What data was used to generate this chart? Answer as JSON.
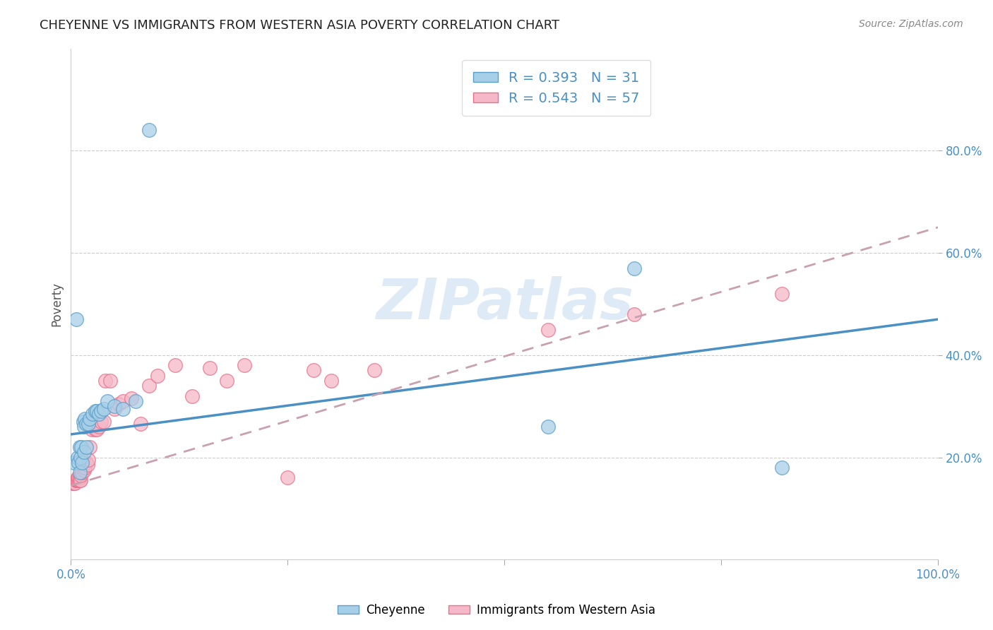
{
  "title": "CHEYENNE VS IMMIGRANTS FROM WESTERN ASIA POVERTY CORRELATION CHART",
  "source": "Source: ZipAtlas.com",
  "ylabel": "Poverty",
  "xlim": [
    0,
    1.0
  ],
  "ylim": [
    0,
    1.0
  ],
  "xtick_positions": [
    0.0,
    0.25,
    0.5,
    0.75,
    1.0
  ],
  "xtick_labels": [
    "0.0%",
    "",
    "",
    "",
    "100.0%"
  ],
  "ytick_positions": [
    0.2,
    0.4,
    0.6,
    0.8
  ],
  "ytick_labels": [
    "20.0%",
    "40.0%",
    "60.0%",
    "80.0%"
  ],
  "blue_color": "#a8cfe8",
  "pink_color": "#f5b8c8",
  "blue_edge_color": "#5b9ec9",
  "pink_edge_color": "#e8708a",
  "blue_line_color": "#4a90c4",
  "pink_line_color": "#c8a0b0",
  "R_blue": 0.393,
  "N_blue": 31,
  "R_pink": 0.543,
  "N_pink": 57,
  "legend_label_blue": "Cheyenne",
  "legend_label_pink": "Immigrants from Western Asia",
  "watermark": "ZIPatlas",
  "blue_scatter_x": [
    0.004,
    0.006,
    0.008,
    0.009,
    0.01,
    0.01,
    0.011,
    0.012,
    0.013,
    0.014,
    0.015,
    0.015,
    0.016,
    0.018,
    0.018,
    0.02,
    0.022,
    0.025,
    0.028,
    0.03,
    0.032,
    0.035,
    0.038,
    0.042,
    0.05,
    0.06,
    0.075,
    0.09,
    0.55,
    0.65,
    0.82
  ],
  "blue_scatter_y": [
    0.19,
    0.47,
    0.2,
    0.19,
    0.17,
    0.22,
    0.2,
    0.22,
    0.19,
    0.27,
    0.26,
    0.21,
    0.275,
    0.265,
    0.22,
    0.265,
    0.275,
    0.285,
    0.29,
    0.29,
    0.285,
    0.29,
    0.295,
    0.31,
    0.3,
    0.295,
    0.31,
    0.84,
    0.26,
    0.57,
    0.18
  ],
  "pink_scatter_x": [
    0.002,
    0.003,
    0.004,
    0.005,
    0.006,
    0.006,
    0.007,
    0.008,
    0.008,
    0.009,
    0.009,
    0.01,
    0.01,
    0.011,
    0.011,
    0.012,
    0.012,
    0.013,
    0.013,
    0.014,
    0.015,
    0.015,
    0.016,
    0.017,
    0.018,
    0.019,
    0.02,
    0.022,
    0.024,
    0.025,
    0.026,
    0.028,
    0.03,
    0.032,
    0.035,
    0.038,
    0.04,
    0.045,
    0.05,
    0.055,
    0.06,
    0.07,
    0.08,
    0.09,
    0.1,
    0.12,
    0.14,
    0.16,
    0.18,
    0.2,
    0.25,
    0.28,
    0.3,
    0.35,
    0.55,
    0.65,
    0.82
  ],
  "pink_scatter_y": [
    0.15,
    0.15,
    0.15,
    0.15,
    0.155,
    0.155,
    0.155,
    0.155,
    0.16,
    0.155,
    0.16,
    0.155,
    0.16,
    0.155,
    0.165,
    0.17,
    0.18,
    0.17,
    0.185,
    0.18,
    0.175,
    0.19,
    0.18,
    0.19,
    0.19,
    0.185,
    0.195,
    0.22,
    0.255,
    0.26,
    0.27,
    0.255,
    0.255,
    0.26,
    0.27,
    0.27,
    0.35,
    0.35,
    0.295,
    0.305,
    0.31,
    0.315,
    0.265,
    0.34,
    0.36,
    0.38,
    0.32,
    0.375,
    0.35,
    0.38,
    0.16,
    0.37,
    0.35,
    0.37,
    0.45,
    0.48,
    0.52
  ],
  "blue_line_y0": 0.245,
  "blue_line_y1": 0.47,
  "pink_line_y0": 0.145,
  "pink_line_y1": 0.65
}
